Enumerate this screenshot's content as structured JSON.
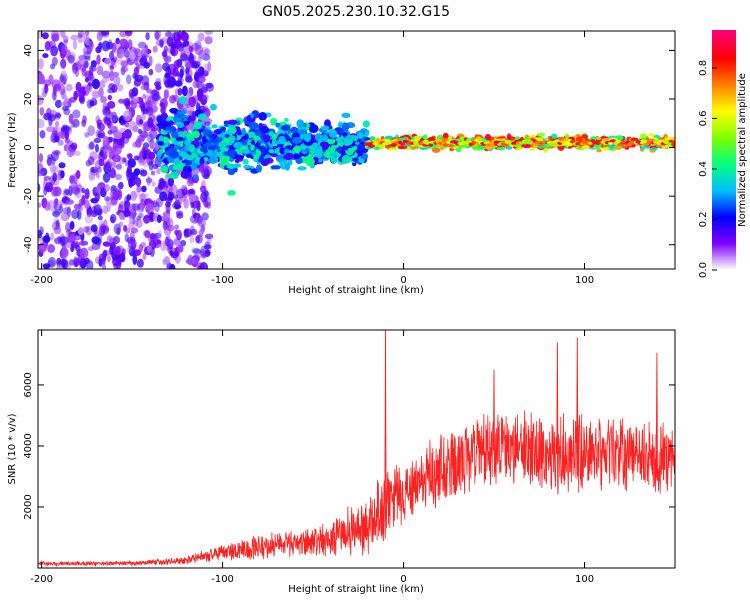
{
  "figure": {
    "title": "GN05.2025.230.10.32.G15"
  },
  "chart_data": [
    {
      "type": "heatmap",
      "xlabel": "Height of straight line (km)",
      "ylabel": "Frequency (Hz)",
      "xlim": [
        -202,
        150
      ],
      "ylim": [
        -50,
        48
      ],
      "xticks": [
        -200,
        -100,
        0,
        100
      ],
      "xtick_labels": [
        "-200",
        "-100",
        "0",
        "100"
      ],
      "yticks": [
        -40,
        -20,
        0,
        20,
        40
      ],
      "ytick_labels": [
        "-40",
        "-20",
        "0",
        "20",
        "40"
      ],
      "colorbar": {
        "label": "Normalized spectral amplitude",
        "range": [
          0,
          0.95
        ],
        "ticks": [
          0,
          0.2,
          0.4,
          0.6,
          0.8
        ],
        "tick_labels": [
          "0.0",
          "0.2",
          "0.4",
          "0.6",
          "0.8"
        ],
        "colormap": [
          "#ffffff",
          "#7f00ff",
          "#0000ff",
          "#00bfff",
          "#00ff80",
          "#80ff00",
          "#ffff00",
          "#ff8000",
          "#ff0000",
          "#ff0080"
        ]
      },
      "regions": [
        {
          "name": "noise",
          "x_range": [
            -202,
            -107
          ],
          "freq_range": [
            -50,
            48
          ],
          "amplitude_range": [
            0.0,
            0.15
          ]
        },
        {
          "name": "onset",
          "x_range": [
            -135,
            -20
          ],
          "freq_center": 1,
          "freq_spread": 12,
          "amplitude_range": [
            0.1,
            0.4
          ]
        },
        {
          "name": "tracked",
          "x_range": [
            -20,
            150
          ],
          "freq_center": 2,
          "freq_spread": 2,
          "amplitude_range": [
            0.3,
            0.9
          ]
        }
      ]
    },
    {
      "type": "line",
      "xlabel": "Height of straight line (km)",
      "ylabel": "SNR (10 * v/v)",
      "xlim": [
        -202,
        150
      ],
      "ylim": [
        0,
        7800
      ],
      "xticks": [
        -200,
        -100,
        0,
        100
      ],
      "xtick_labels": [
        "-200",
        "-100",
        "0",
        "100"
      ],
      "yticks": [
        2000,
        4000,
        6000
      ],
      "ytick_labels": [
        "2000",
        "4000",
        "6000"
      ],
      "color": "#ff2020",
      "series_envelope": {
        "x": [
          -202,
          -150,
          -120,
          -100,
          -80,
          -60,
          -40,
          -20,
          -10,
          0,
          20,
          40,
          60,
          80,
          100,
          120,
          150
        ],
        "mean": [
          150,
          150,
          250,
          500,
          700,
          800,
          1000,
          1400,
          2100,
          2500,
          3200,
          3800,
          3900,
          3700,
          3800,
          3700,
          3500
        ],
        "amplitude": [
          80,
          80,
          150,
          300,
          500,
          450,
          700,
          1100,
          1300,
          1200,
          1300,
          1400,
          1500,
          1400,
          1500,
          1300,
          1300
        ]
      },
      "spikes": [
        {
          "x": -10,
          "y": 7800
        },
        {
          "x": 50,
          "y": 6500
        },
        {
          "x": 85,
          "y": 7400
        },
        {
          "x": 96,
          "y": 7550
        },
        {
          "x": 140,
          "y": 7050
        }
      ]
    }
  ]
}
